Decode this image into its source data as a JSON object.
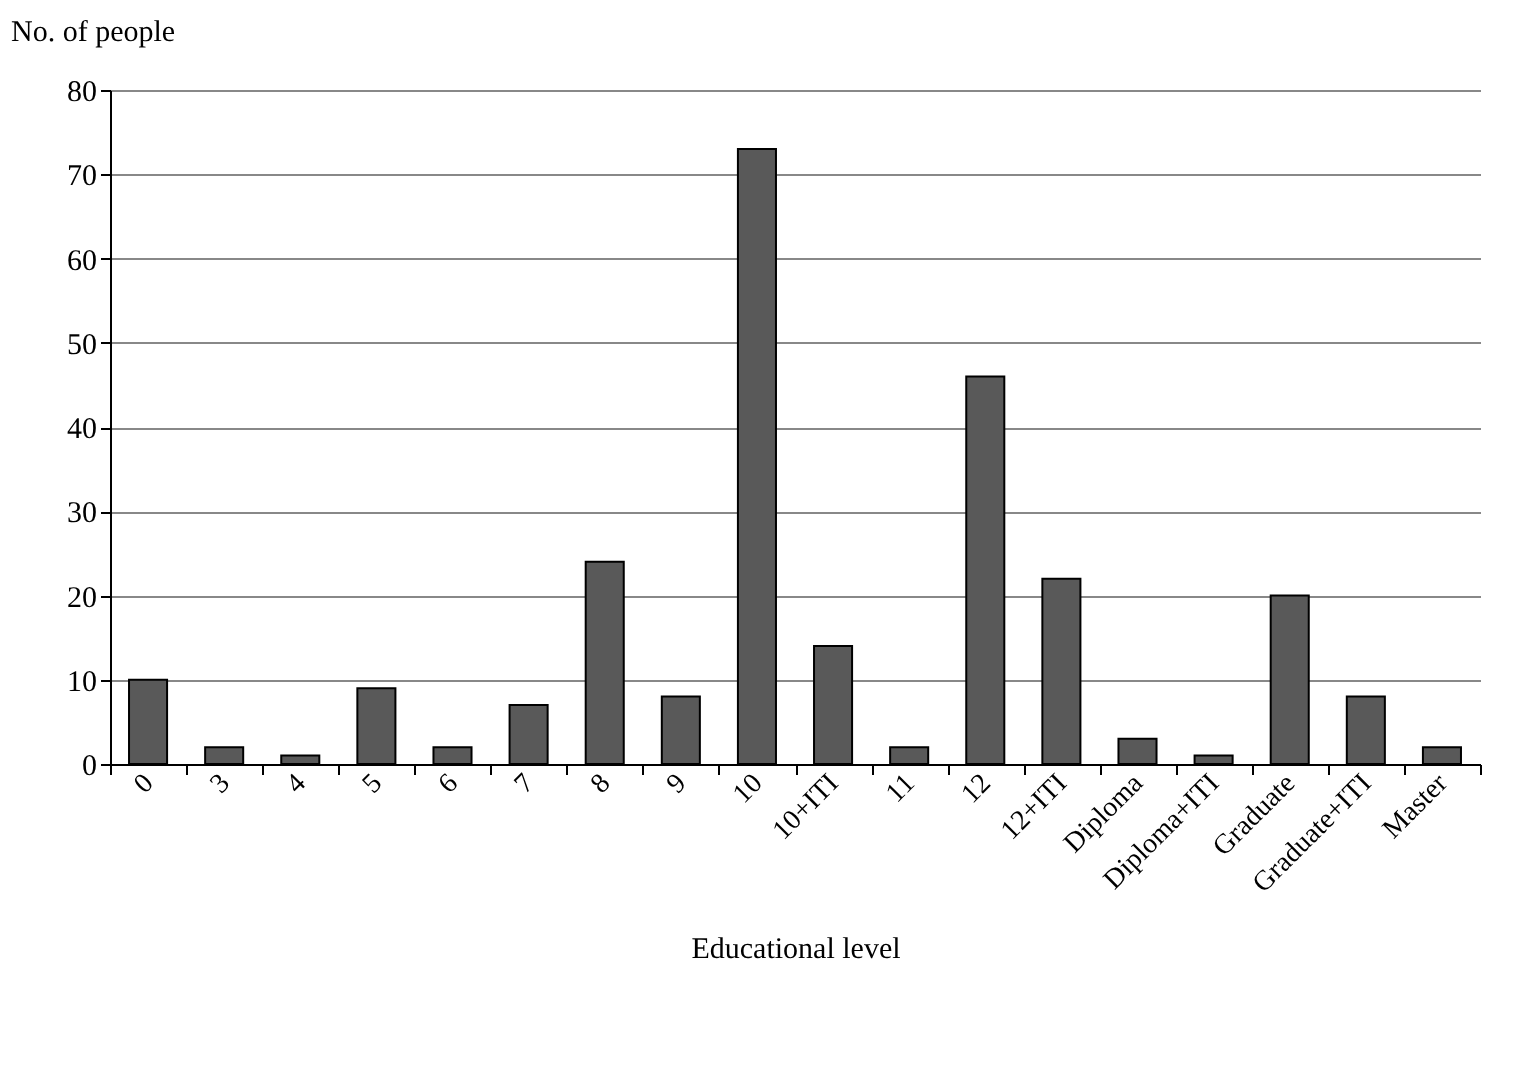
{
  "chart_data": {
    "type": "bar",
    "xlabel": "Educational level",
    "ylabel": "No. of people",
    "categories": [
      "0",
      "3",
      "4",
      "5",
      "6",
      "7",
      "8",
      "9",
      "10",
      "10+ITI",
      "11",
      "12",
      "12+ITI",
      "Diploma",
      "Diploma+ITI",
      "Graduate",
      "Graduate+ITI",
      "Master"
    ],
    "values": [
      10,
      2,
      1,
      9,
      2,
      7,
      24,
      8,
      73,
      14,
      2,
      46,
      22,
      3,
      1,
      20,
      8,
      2
    ],
    "color": "#595959",
    "ylim": [
      0,
      80
    ],
    "yticks": [
      0,
      10,
      20,
      30,
      40,
      50,
      60,
      70,
      80
    ],
    "grid": "y"
  }
}
